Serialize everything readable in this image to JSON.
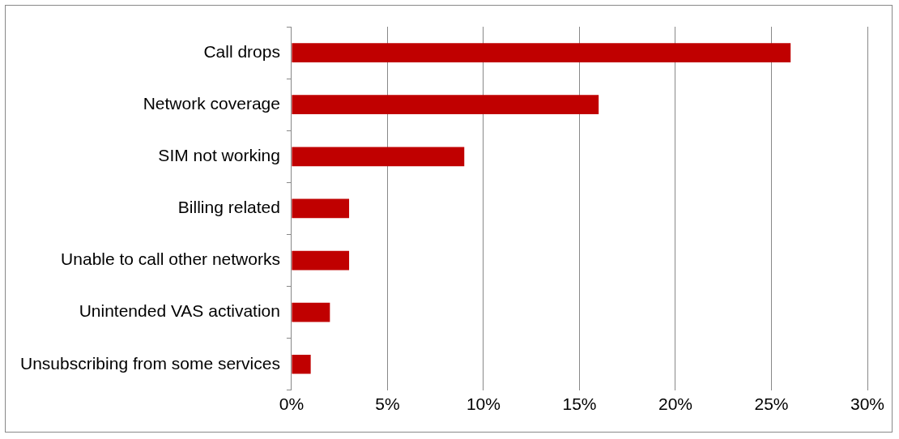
{
  "chart_data": {
    "type": "bar",
    "orientation": "horizontal",
    "categories": [
      "Call drops",
      "Network coverage",
      "SIM not working",
      "Billing related",
      "Unable to call other networks",
      "Unintended VAS activation",
      "Unsubscribing from some services"
    ],
    "values": [
      26,
      16,
      9,
      3,
      3,
      2,
      1
    ],
    "color": "#c00000",
    "xlim": [
      0,
      30
    ],
    "xticks": [
      {
        "value": 0,
        "label": "0%"
      },
      {
        "value": 5,
        "label": "5%"
      },
      {
        "value": 10,
        "label": "10%"
      },
      {
        "value": 15,
        "label": "15%"
      },
      {
        "value": 20,
        "label": "20%"
      },
      {
        "value": 25,
        "label": "25%"
      },
      {
        "value": 30,
        "label": "30%"
      }
    ],
    "grid": "x",
    "legend": false
  }
}
